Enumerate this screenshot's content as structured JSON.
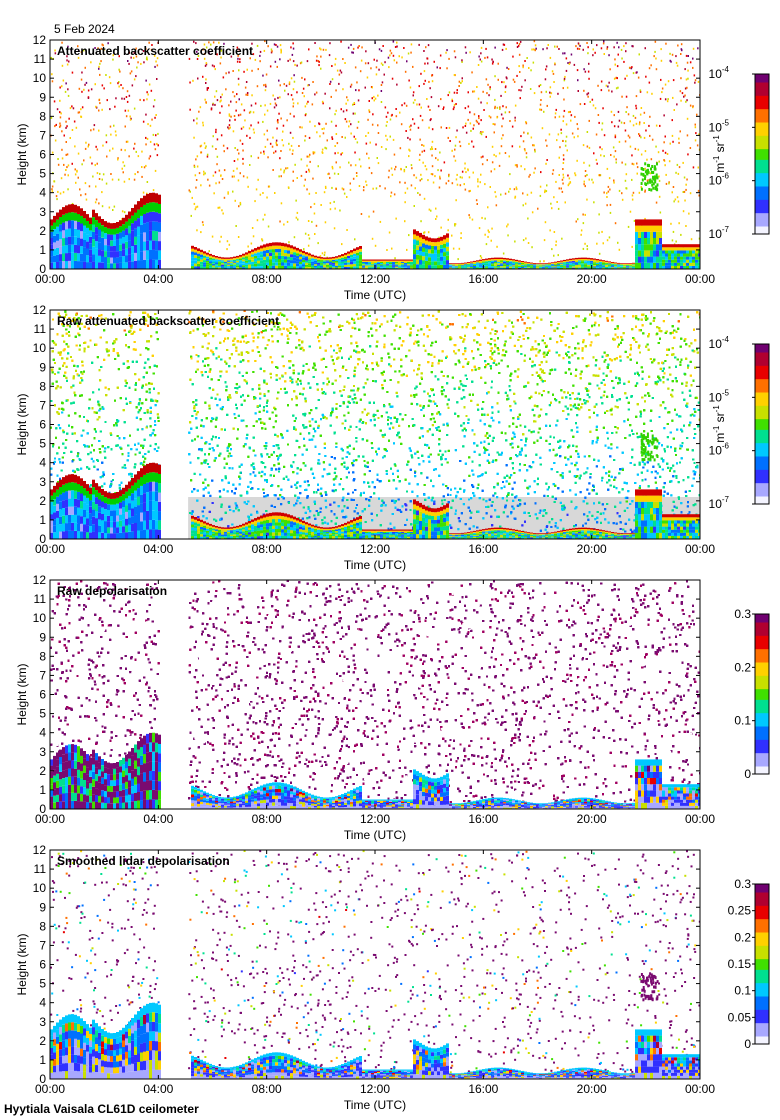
{
  "date": "5 Feb 2024",
  "footer": "Hyytiala Vaisala CL61D ceilometer",
  "colors": {
    "no_data": "#ffffff",
    "low_signal": "#d8d8d8",
    "palette": [
      "#f0f0ff",
      "#b8b8ff",
      "#5050ff",
      "#0000e0",
      "#00b0ff",
      "#00e080",
      "#30e000",
      "#c0e000",
      "#ffd000",
      "#ff6000",
      "#e00000",
      "#a00050",
      "#700070"
    ]
  },
  "chart_data": [
    {
      "type": "heatmap",
      "title": "Attenuated backscatter coefficient",
      "xlabel": "Time (UTC)",
      "ylabel": "Height (km)",
      "x_ticks": [
        "00:00",
        "04:00",
        "08:00",
        "12:00",
        "16:00",
        "20:00",
        "00:00"
      ],
      "y_ticks": [
        "0",
        "1",
        "2",
        "3",
        "4",
        "5",
        "6",
        "7",
        "8",
        "9",
        "10",
        "11",
        "12"
      ],
      "xlim_hours": [
        0,
        24
      ],
      "ylim_km": [
        0,
        12
      ],
      "data_gap_hours": [
        4.0,
        5.1
      ],
      "colorbar": {
        "scale": "log",
        "range": [
          1e-07,
          0.0001
        ],
        "tick_base": [
          "10",
          "10",
          "10",
          "10"
        ],
        "tick_exp": [
          "-7",
          "-6",
          "-5",
          "-4"
        ],
        "unit_main": [
          "m",
          " sr"
        ],
        "unit_exp": [
          "-1",
          "-1"
        ]
      }
    },
    {
      "type": "heatmap",
      "title": "Raw attenuated backscatter coefficient",
      "xlabel": "Time (UTC)",
      "ylabel": "Height (km)",
      "x_ticks": [
        "00:00",
        "04:00",
        "08:00",
        "12:00",
        "16:00",
        "20:00",
        "00:00"
      ],
      "y_ticks": [
        "0",
        "1",
        "2",
        "3",
        "4",
        "5",
        "6",
        "7",
        "8",
        "9",
        "10",
        "11",
        "12"
      ],
      "xlim_hours": [
        0,
        24
      ],
      "ylim_km": [
        0,
        12
      ],
      "data_gap_hours": [
        4.0,
        5.1
      ],
      "colorbar": {
        "scale": "log",
        "range": [
          1e-07,
          0.0001
        ],
        "tick_base": [
          "10",
          "10",
          "10",
          "10"
        ],
        "tick_exp": [
          "-7",
          "-6",
          "-5",
          "-4"
        ],
        "unit_main": [
          "m",
          " sr"
        ],
        "unit_exp": [
          "-1",
          "-1"
        ]
      }
    },
    {
      "type": "heatmap",
      "title": "Raw depolarisation",
      "xlabel": "Time (UTC)",
      "ylabel": "Height (km)",
      "x_ticks": [
        "00:00",
        "04:00",
        "08:00",
        "12:00",
        "16:00",
        "20:00",
        "00:00"
      ],
      "y_ticks": [
        "0",
        "1",
        "2",
        "3",
        "4",
        "5",
        "6",
        "7",
        "8",
        "9",
        "10",
        "11",
        "12"
      ],
      "xlim_hours": [
        0,
        24
      ],
      "ylim_km": [
        0,
        12
      ],
      "data_gap_hours": [
        4.0,
        5.1
      ],
      "colorbar": {
        "scale": "linear",
        "range": [
          0,
          0.3
        ],
        "ticks": [
          "0",
          "0.1",
          "0.2",
          "0.3"
        ]
      }
    },
    {
      "type": "heatmap",
      "title": "Smoothed lidar depolarisation",
      "xlabel": "Time (UTC)",
      "ylabel": "Height (km)",
      "x_ticks": [
        "00:00",
        "04:00",
        "08:00",
        "12:00",
        "16:00",
        "20:00",
        "00:00"
      ],
      "y_ticks": [
        "0",
        "1",
        "2",
        "3",
        "4",
        "5",
        "6",
        "7",
        "8",
        "9",
        "10",
        "11",
        "12"
      ],
      "xlim_hours": [
        0,
        24
      ],
      "ylim_km": [
        0,
        12
      ],
      "data_gap_hours": [
        4.0,
        5.1
      ],
      "colorbar": {
        "scale": "linear",
        "range": [
          0,
          0.3
        ],
        "ticks": [
          "0",
          "0.05",
          "0.1",
          "0.15",
          "0.2",
          "0.25",
          "0.3"
        ]
      }
    }
  ]
}
